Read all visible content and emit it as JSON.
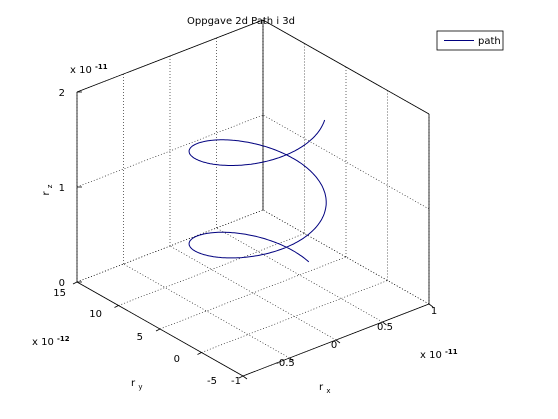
{
  "chart_data": {
    "type": "line",
    "projection": "3d",
    "title": "Oppgave 2d Path i 3d",
    "xlabel": "r",
    "xlabel_sub": "x",
    "ylabel": "r",
    "ylabel_sub": "y",
    "zlabel": "r",
    "zlabel_sub": "z",
    "xlim": [
      -1e-11,
      1e-11
    ],
    "ylim": [
      -5e-12,
      1.5e-11
    ],
    "zlim": [
      0,
      2e-11
    ],
    "x_ticks": [
      -1,
      -0.5,
      0,
      0.5,
      1
    ],
    "x_tick_labels": [
      "-1",
      "-0.5",
      "0",
      "0.5",
      "1"
    ],
    "y_ticks": [
      -5,
      0,
      5,
      10,
      15
    ],
    "y_tick_labels": [
      "-5",
      "0",
      "5",
      "10",
      "15"
    ],
    "z_ticks": [
      0,
      1,
      2
    ],
    "z_tick_labels": [
      "0",
      "1",
      "2"
    ],
    "x_exponent": {
      "base": "x 10",
      "power": "-11"
    },
    "y_exponent": {
      "base": "x 10",
      "power": "-12"
    },
    "z_exponent": {
      "base": "x 10",
      "power": "-11"
    },
    "grid": true,
    "legend": {
      "position": "top-right",
      "entries": [
        "path"
      ]
    },
    "line_color": "#00007f",
    "series": [
      {
        "name": "path",
        "turns": 1.85,
        "start_angle_deg": 0,
        "helix_radius": 5.5e-12,
        "center_x": 5e-13,
        "center_y": 5e-12,
        "z_start": 1e-12,
        "z_end": 1.9e-11
      }
    ]
  }
}
